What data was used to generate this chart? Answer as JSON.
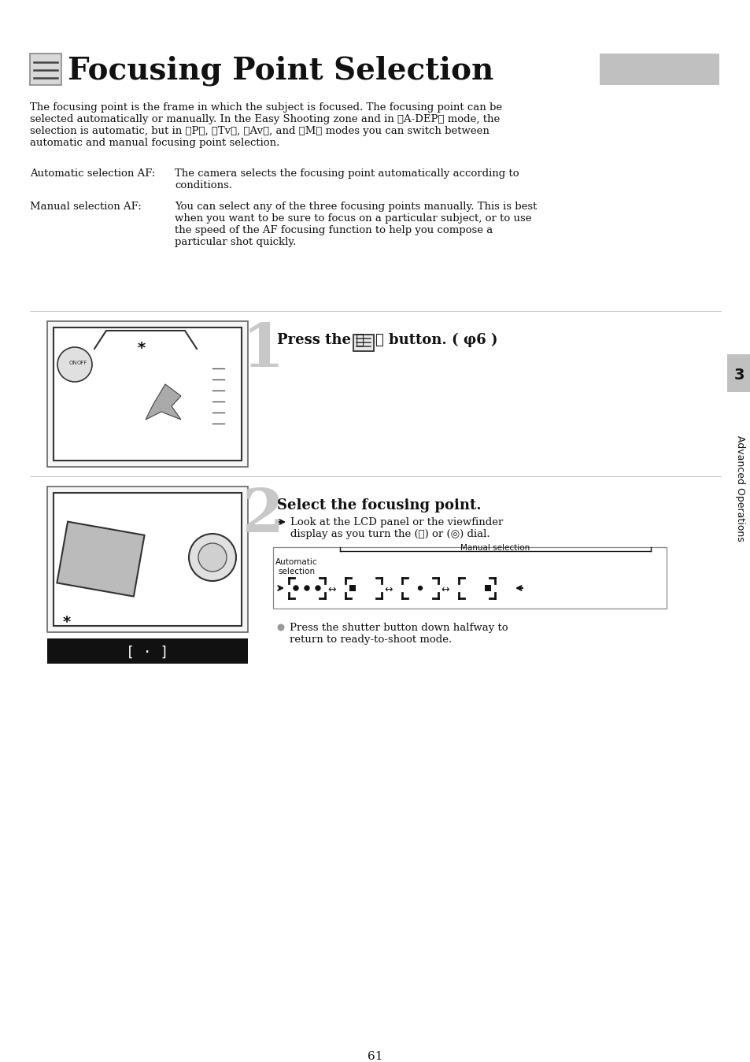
{
  "title": "Focusing Point Selection",
  "bg_color": "#ffffff",
  "text_color": "#000000",
  "page_number": "61",
  "intro_lines": [
    "The focusing point is the frame in which the subject is focused. The focusing point can be",
    "selected automatically or manually. In the Easy Shooting zone and in 〈A-DEP〉 mode, the",
    "selection is automatic, but in 〈P〉, 〈Tv〉, 〈Av〉, and 〈M〉 modes you can switch between",
    "automatic and manual focusing point selection."
  ],
  "auto_af_label": "Automatic selection AF:",
  "auto_af_text_lines": [
    "The camera selects the focusing point automatically according to",
    "conditions."
  ],
  "manual_af_label": "Manual selection AF:",
  "manual_af_text_lines": [
    "You can select any of the three focusing points manually. This is best",
    "when you want to be sure to focus on a particular subject, or to use",
    "the speed of the AF focusing function to help you compose a",
    "particular shot quickly."
  ],
  "step1_text_before": "Press the 〈",
  "step1_text_after": "〉 button. (φ6 )",
  "step2_title": "Select the focusing point.",
  "step2_sub_lines": [
    "Look at the LCD panel or the viewfinder",
    "display as you turn the (⛳) or (◎) dial."
  ],
  "auto_sel_label": "Automatic\nselection",
  "manual_sel_label": "Manual selection",
  "label_box_text": "[ · ]",
  "bottom_note_lines": [
    "Press the shutter button down halfway to",
    "return to ready-to-shoot mode."
  ],
  "sidebar_number": "3",
  "sidebar_text": "Advanced Operations",
  "sidebar_bg": "#c0c0c0",
  "divider_color": "#bbbbbb",
  "gray_block_color": "#c0c0c0",
  "step_num_color": "#c8c8c8",
  "icon_bg": "#d8d8d8",
  "icon_border": "#888888"
}
